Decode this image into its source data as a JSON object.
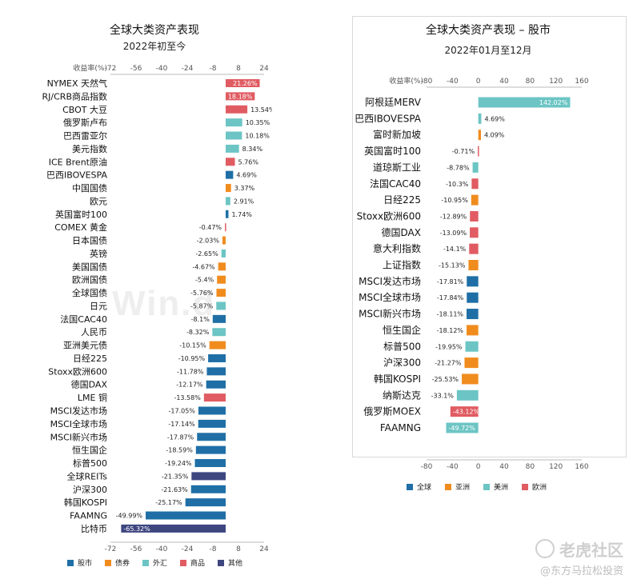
{
  "watermark": {
    "logo_text": "Win.d",
    "site": "老虎社区",
    "author": "@东方马拉松投资"
  },
  "chart_data": [
    {
      "type": "bar",
      "orientation": "horizontal",
      "title": "全球大类资产表现",
      "subtitle": "2022年初至今",
      "xlabel": "收益率(%)",
      "xlim": [
        -72,
        24
      ],
      "xticks": [
        -72,
        -56,
        -40,
        -24,
        -8,
        8,
        24
      ],
      "legend": {
        "placement": "bottom",
        "entries": [
          {
            "name": "股市",
            "color": "#1f6fa6"
          },
          {
            "name": "债券",
            "color": "#f08c1e"
          },
          {
            "name": "外汇",
            "color": "#6cc5c4"
          },
          {
            "name": "商品",
            "color": "#e05c62"
          },
          {
            "name": "其他",
            "color": "#3e4680"
          }
        ]
      },
      "categories": [
        "NYMEX 天然气",
        "RJ/CRB商品指数",
        "CBOT 大豆",
        "俄罗斯卢布",
        "巴西雷亚尔",
        "美元指数",
        "ICE Brent原油",
        "巴西IBOVESPA",
        "中国国债",
        "欧元",
        "英国富时100",
        "COMEX 黄金",
        "日本国债",
        "英镑",
        "美国国债",
        "欧洲国债",
        "全球国债",
        "日元",
        "法国CAC40",
        "人民币",
        "亚洲美元债",
        "日经225",
        "Stoxx欧洲600",
        "德国DAX",
        "LME 铜",
        "MSCI发达市场",
        "MSCI全球市场",
        "MSCI新兴市场",
        "恒生国企",
        "标普500",
        "全球REITs",
        "沪深300",
        "韩国KOSPI",
        "FAAMNG",
        "比特币"
      ],
      "values": [
        21.26,
        18.18,
        13.54,
        10.35,
        10.18,
        8.34,
        5.76,
        4.69,
        3.37,
        2.91,
        1.74,
        -0.47,
        -2.03,
        -2.65,
        -4.67,
        -5.4,
        -5.76,
        -5.87,
        -8.1,
        -8.32,
        -10.15,
        -10.95,
        -11.78,
        -12.17,
        -13.58,
        -17.05,
        -17.14,
        -17.87,
        -18.59,
        -19.24,
        -21.35,
        -21.63,
        -25.17,
        -49.99,
        -65.32
      ],
      "labels": [
        "21.26%",
        "18.18%",
        "13.54%",
        "10.35%",
        "10.18%",
        "8.34%",
        "5.76%",
        "4.69%",
        "3.37%",
        "2.91%",
        "1.74%",
        "-0.47%",
        "-2.03%",
        "-2.65%",
        "-4.67%",
        "-5.4%",
        "-5.76%",
        "-5.87%",
        "-8.1%",
        "-8.32%",
        "-10.15%",
        "-10.95%",
        "-11.78%",
        "-12.17%",
        "-13.58%",
        "-17.05%",
        "-17.14%",
        "-17.87%",
        "-18.59%",
        "-19.24%",
        "-21.35%",
        "-21.63%",
        "-25.17%",
        "-49.99%",
        "-65.32%"
      ],
      "groups": [
        "商品",
        "商品",
        "商品",
        "外汇",
        "外汇",
        "外汇",
        "商品",
        "股市",
        "债券",
        "外汇",
        "股市",
        "商品",
        "债券",
        "外汇",
        "债券",
        "债券",
        "债券",
        "外汇",
        "股市",
        "外汇",
        "债券",
        "股市",
        "股市",
        "股市",
        "商品",
        "股市",
        "股市",
        "股市",
        "股市",
        "股市",
        "其他",
        "股市",
        "股市",
        "股市",
        "其他"
      ]
    },
    {
      "type": "bar",
      "orientation": "horizontal",
      "title": "全球大类资产表现 – 股市",
      "subtitle": "2022年01月至12月",
      "xlabel": "收益率(%)",
      "xlim": [
        -80,
        160
      ],
      "xticks": [
        -80,
        -40,
        0,
        40,
        80,
        120,
        160
      ],
      "legend": {
        "placement": "bottom",
        "entries": [
          {
            "name": "全球",
            "color": "#1f6fa6"
          },
          {
            "name": "亚洲",
            "color": "#f08c1e"
          },
          {
            "name": "美洲",
            "color": "#6cc5c4"
          },
          {
            "name": "欧洲",
            "color": "#e05c62"
          }
        ]
      },
      "categories": [
        "阿根廷MERV",
        "巴西IBOVESPA",
        "富时新加坡",
        "英国富时100",
        "道琼斯工业",
        "法国CAC40",
        "日经225",
        "Stoxx欧洲600",
        "德国DAX",
        "意大利指数",
        "上证指数",
        "MSCI发达市场",
        "MSCI全球市场",
        "MSCI新兴市场",
        "恒生国企",
        "标普500",
        "沪深300",
        "韩国KOSPI",
        "纳斯达克",
        "俄罗斯MOEX",
        "FAAMNG"
      ],
      "values": [
        142.02,
        4.69,
        4.09,
        -0.71,
        -8.78,
        -10.3,
        -10.95,
        -12.89,
        -13.09,
        -14.1,
        -15.13,
        -17.81,
        -17.84,
        -18.11,
        -18.12,
        -19.95,
        -21.27,
        -25.53,
        -33.1,
        -43.12,
        -49.72
      ],
      "labels": [
        "142.02%",
        "4.69%",
        "4.09%",
        "-0.71%",
        "-8.78%",
        "-10.3%",
        "-10.95%",
        "-12.89%",
        "-13.09%",
        "-14.1%",
        "-15.13%",
        "-17.81%",
        "-17.84%",
        "-18.11%",
        "-18.12%",
        "-19.95%",
        "-21.27%",
        "-25.53%",
        "-33.1%",
        "-43.12%",
        "-49.72%"
      ],
      "groups": [
        "美洲",
        "美洲",
        "亚洲",
        "欧洲",
        "美洲",
        "欧洲",
        "亚洲",
        "欧洲",
        "欧洲",
        "欧洲",
        "亚洲",
        "全球",
        "全球",
        "全球",
        "亚洲",
        "美洲",
        "亚洲",
        "亚洲",
        "美洲",
        "欧洲",
        "美洲"
      ]
    }
  ]
}
